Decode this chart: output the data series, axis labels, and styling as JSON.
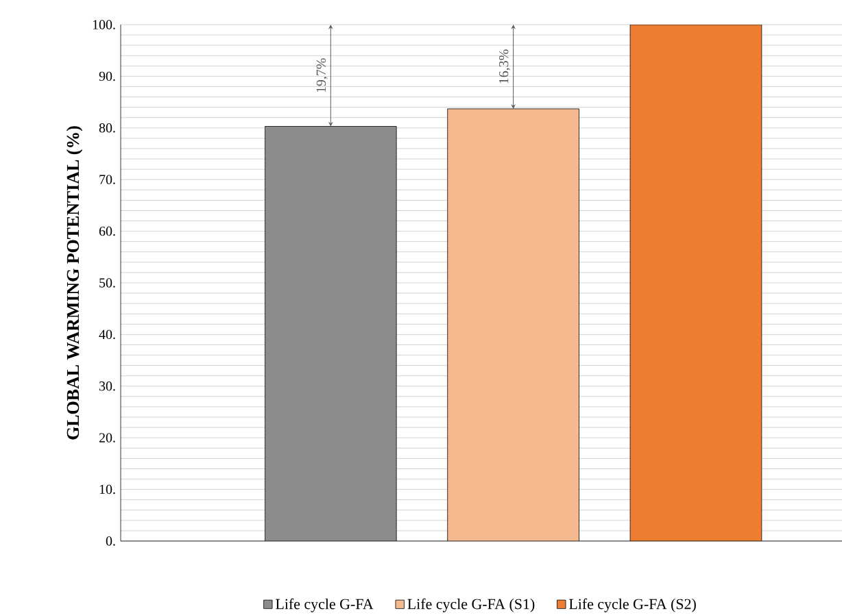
{
  "chart_data": {
    "type": "bar",
    "ylabel": "GLOBAL WARMING POTENTIAL (%)",
    "categories": [
      null,
      null,
      null
    ],
    "series": [
      {
        "name": "Life cycle G-FA",
        "color": "#8c8c8c",
        "values": [
          80.3,
          null,
          null
        ]
      },
      {
        "name": "Life cycle G-FA (S1)",
        "color": "#f5b98f",
        "values": [
          null,
          83.7,
          null
        ]
      },
      {
        "name": "Life cycle G-FA (S2)",
        "color": "#ed7d31",
        "values": [
          null,
          null,
          100
        ]
      }
    ],
    "annotations": [
      "19,7%",
      "16,3%"
    ],
    "ylim": [
      0,
      100
    ],
    "yticks": [
      {
        "value": 0,
        "label": "0."
      },
      {
        "value": 10,
        "label": "10."
      },
      {
        "value": 20,
        "label": "20."
      },
      {
        "value": 30,
        "label": "30."
      },
      {
        "value": 40,
        "label": "40."
      },
      {
        "value": 50,
        "label": "50."
      },
      {
        "value": 60,
        "label": "60."
      },
      {
        "value": 70,
        "label": "70."
      },
      {
        "value": 80,
        "label": "80."
      },
      {
        "value": 90,
        "label": "90."
      },
      {
        "value": 100,
        "label": "100."
      }
    ],
    "grid": true,
    "legend": "bottom"
  }
}
